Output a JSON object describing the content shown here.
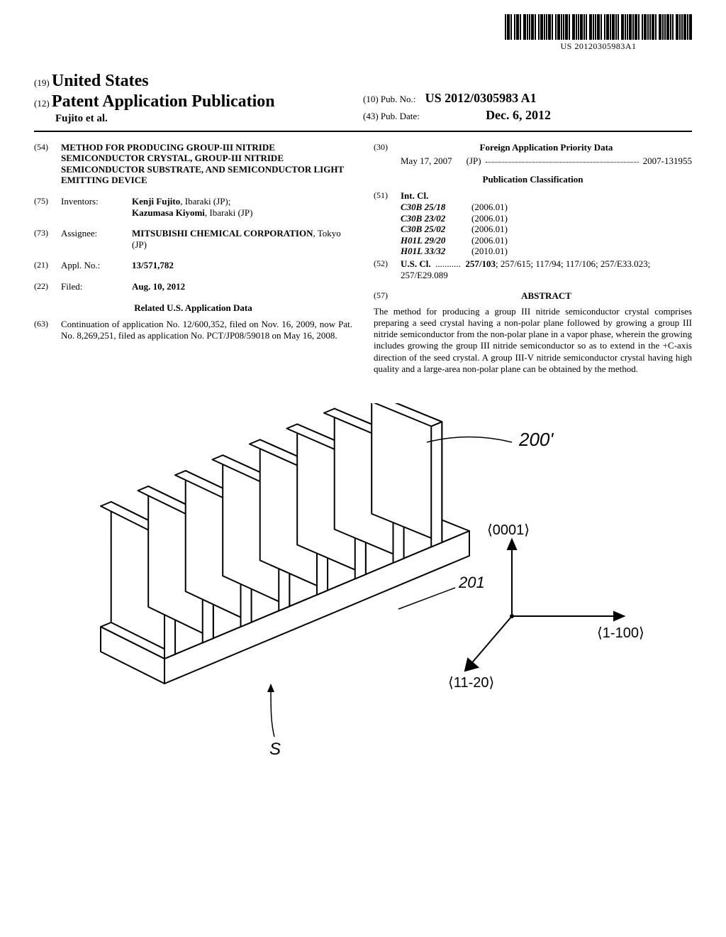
{
  "barcode_text": "US 20120305983A1",
  "header": {
    "country_code": "(19)",
    "country": "United States",
    "pub_code": "(12)",
    "pub_type": "Patent Application Publication",
    "authors": "Fujito et al.",
    "pubno_code": "(10)",
    "pubno_label": "Pub. No.:",
    "pubno": "US 2012/0305983 A1",
    "pubdate_code": "(43)",
    "pubdate_label": "Pub. Date:",
    "pubdate": "Dec. 6, 2012"
  },
  "left": {
    "title_code": "(54)",
    "title": "METHOD FOR PRODUCING GROUP-III NITRIDE SEMICONDUCTOR CRYSTAL, GROUP-III NITRIDE SEMICONDUCTOR SUBSTRATE, AND SEMICONDUCTOR LIGHT EMITTING DEVICE",
    "inventors_code": "(75)",
    "inventors_label": "Inventors:",
    "inventor1_name": "Kenji Fujito",
    "inventor1_loc": ", Ibaraki (JP);",
    "inventor2_name": "Kazumasa Kiyomi",
    "inventor2_loc": ", Ibaraki (JP)",
    "assignee_code": "(73)",
    "assignee_label": "Assignee:",
    "assignee_name": "MITSUBISHI CHEMICAL CORPORATION",
    "assignee_loc": ", Tokyo (JP)",
    "applno_code": "(21)",
    "applno_label": "Appl. No.:",
    "applno": "13/571,782",
    "filed_code": "(22)",
    "filed_label": "Filed:",
    "filed": "Aug. 10, 2012",
    "related_head": "Related U.S. Application Data",
    "cont_code": "(63)",
    "cont_text": "Continuation of application No. 12/600,352, filed on Nov. 16, 2009, now Pat. No. 8,269,251, filed as application No. PCT/JP08/59018 on May 16, 2008."
  },
  "right": {
    "foreign_code": "(30)",
    "foreign_head": "Foreign Application Priority Data",
    "priority_date": "May 17, 2007",
    "priority_cc": "(JP)",
    "priority_no": "2007-131955",
    "class_head": "Publication Classification",
    "intcl_code": "(51)",
    "intcl_label": "Int. Cl.",
    "intcl": [
      {
        "c": "C30B 25/18",
        "v": "(2006.01)"
      },
      {
        "c": "C30B 23/02",
        "v": "(2006.01)"
      },
      {
        "c": "C30B 25/02",
        "v": "(2006.01)"
      },
      {
        "c": "H01L 29/20",
        "v": "(2006.01)"
      },
      {
        "c": "H01L 33/32",
        "v": "(2010.01)"
      }
    ],
    "uscl_code": "(52)",
    "uscl_label": "U.S. Cl.",
    "uscl_lead": "257/103",
    "uscl_rest": "; 257/615; 117/94; 117/106; 257/E33.023; 257/E29.089",
    "abstract_code": "(57)",
    "abstract_head": "ABSTRACT",
    "abstract_text": "The method for producing a group III nitride semiconductor crystal comprises preparing a seed crystal having a non-polar plane followed by growing a group III nitride semiconductor from the non-polar plane in a vapor phase, wherein the growing includes growing the group III nitride semiconductor so as to extend in the +C-axis direction of the seed crystal. A group III-V nitride semiconductor crystal having high quality and a large-area non-polar plane can be obtained by the method."
  },
  "figure": {
    "ref_200": "200'",
    "ref_201": "201",
    "ref_S": "S",
    "axis_0001": "⟨0001⟩",
    "axis_1_100": "⟨1-100⟩",
    "axis_11_20": "⟨11-20⟩",
    "stroke": "#000000",
    "fill": "#ffffff",
    "stroke_width": 1.4,
    "stroke_width_thick": 2
  }
}
